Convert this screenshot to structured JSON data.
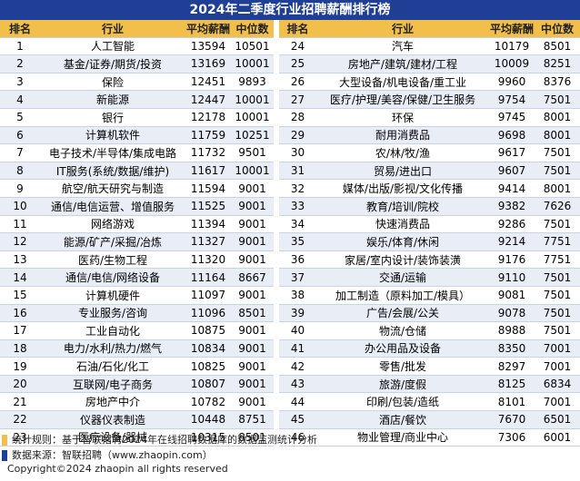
{
  "title": "2024年二季度行业招聘薪酬排行榜",
  "headers": [
    "排名",
    "行业",
    "平均薪酬",
    "中位数",
    "排名",
    "行业",
    "平均薪酬",
    "中位数"
  ],
  "left": [
    [
      "1",
      "人工智能",
      "13594",
      "10501"
    ],
    [
      "2",
      "基金/证券/期货/投资",
      "13169",
      "10001"
    ],
    [
      "3",
      "保险",
      "12451",
      "9893"
    ],
    [
      "4",
      "新能源",
      "12447",
      "10001"
    ],
    [
      "5",
      "银行",
      "12178",
      "10001"
    ],
    [
      "6",
      "计算机软件",
      "11759",
      "10251"
    ],
    [
      "7",
      "电子技术/半导体/集成电路",
      "11732",
      "9501"
    ],
    [
      "8",
      "IT服务(系统/数据/维护)",
      "11617",
      "10001"
    ],
    [
      "9",
      "航空/航天研究与制造",
      "11594",
      "9001"
    ],
    [
      "10",
      "通信/电信运营、增值服务",
      "11525",
      "9001"
    ],
    [
      "11",
      "网络游戏",
      "11394",
      "9001"
    ],
    [
      "12",
      "能源/矿产/采掘/冶炼",
      "11327",
      "9001"
    ],
    [
      "13",
      "医药/生物工程",
      "11320",
      "9001"
    ],
    [
      "14",
      "通信/电信/网络设备",
      "11164",
      "8667"
    ],
    [
      "15",
      "计算机硬件",
      "11097",
      "9001"
    ],
    [
      "16",
      "专业服务/咨询",
      "11096",
      "8501"
    ],
    [
      "17",
      "工业自动化",
      "10875",
      "9001"
    ],
    [
      "18",
      "电力/水利/热力/燃气",
      "10834",
      "9001"
    ],
    [
      "19",
      "石油/石化/化工",
      "10825",
      "9001"
    ],
    [
      "20",
      "互联网/电子商务",
      "10807",
      "9001"
    ],
    [
      "21",
      "房地产中介",
      "10782",
      "9001"
    ],
    [
      "22",
      "仪器仪表制造",
      "10448",
      "8751"
    ],
    [
      "23",
      "医疗设备/器械",
      "10315",
      "8501"
    ]
  ],
  "right": [
    [
      "24",
      "汽车",
      "10179",
      "8501"
    ],
    [
      "25",
      "房地产/建筑/建材/工程",
      "10009",
      "8251"
    ],
    [
      "26",
      "大型设备/机电设备/重工业",
      "9960",
      "8376"
    ],
    [
      "27",
      "医疗/护理/美容/保健/卫生服务",
      "9754",
      "7501"
    ],
    [
      "28",
      "环保",
      "9745",
      "8001"
    ],
    [
      "29",
      "耐用消费品",
      "9698",
      "8001"
    ],
    [
      "30",
      "农/林/牧/渔",
      "9617",
      "7501"
    ],
    [
      "31",
      "贸易/进出口",
      "9607",
      "7501"
    ],
    [
      "32",
      "媒体/出版/影视/文化传播",
      "9414",
      "8001"
    ],
    [
      "33",
      "教育/培训/院校",
      "9382",
      "7626"
    ],
    [
      "34",
      "快速消费品",
      "9286",
      "7501"
    ],
    [
      "35",
      "娱乐/体育/休闲",
      "9214",
      "7751"
    ],
    [
      "36",
      "家居/室内设计/装饰装潢",
      "9176",
      "7751"
    ],
    [
      "37",
      "交通/运输",
      "9110",
      "7501"
    ],
    [
      "38",
      "加工制造（原料加工/模具）",
      "9081",
      "7501"
    ],
    [
      "39",
      "广告/会展/公关",
      "9078",
      "7501"
    ],
    [
      "40",
      "物流/仓储",
      "8988",
      "7501"
    ],
    [
      "41",
      "办公用品及设备",
      "8350",
      "7001"
    ],
    [
      "42",
      "零售/批发",
      "8297",
      "7001"
    ],
    [
      "43",
      "旅游/度假",
      "8125",
      "6834"
    ],
    [
      "44",
      "印刷/包装/造纸",
      "8101",
      "7001"
    ],
    [
      "45",
      "酒店/餐饮",
      "7670",
      "6501"
    ],
    [
      "46",
      "物业管理/商业中心",
      "7306",
      "6001"
    ]
  ],
  "footer": {
    "rule_label": "统计规则：",
    "rule_text": "基于智联招聘2024年在线招聘数据库的数据监测统计分析",
    "source_label": "数据来源：",
    "source_text": "智联招聘（www.zhaopin.com）",
    "copyright": "Copyright©2024 zhaopin all rights reserved",
    "rule_color": "#f2c04a",
    "source_color": "#1f3f96"
  }
}
